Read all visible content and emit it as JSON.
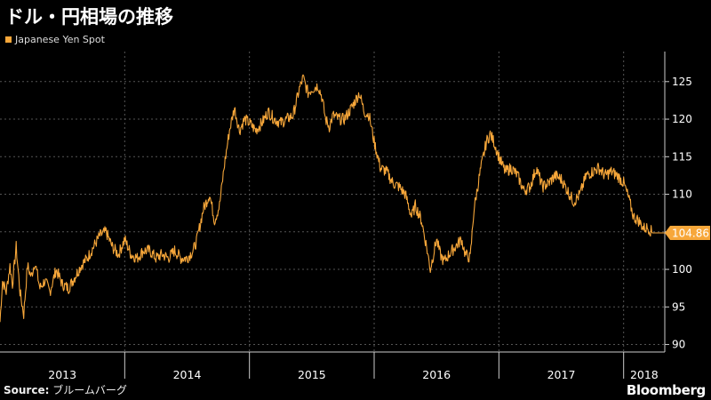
{
  "header": {
    "title": "ドル・円相場の推移"
  },
  "footer": {
    "source_label": "Source:",
    "source_text": "ブルームバーグ",
    "brand": "Bloomberg"
  },
  "colors": {
    "line": "#f7a73a",
    "grid": "#555555",
    "axis": "#cccccc",
    "background": "#000000",
    "last_label_bg": "#f7a73a"
  },
  "chart_data": {
    "type": "line",
    "title": "ドル・円相場の推移",
    "legend_position": "top-left",
    "grid": true,
    "y_axis_side": "right",
    "ylim": [
      89,
      129
    ],
    "yticks": [
      90,
      95,
      100,
      105,
      110,
      115,
      120,
      125
    ],
    "x_categories": [
      "2013",
      "2014",
      "2015",
      "2016",
      "2017",
      "2018"
    ],
    "xlim": [
      2013.0,
      2018.33
    ],
    "last_value_label": "104.86",
    "series": [
      {
        "name": "Japanese Yen Spot",
        "points": [
          [
            2013.0,
            93.0
          ],
          [
            2013.02,
            98.5
          ],
          [
            2013.05,
            97.0
          ],
          [
            2013.08,
            100.5
          ],
          [
            2013.1,
            98.0
          ],
          [
            2013.13,
            103.0
          ],
          [
            2013.16,
            97.0
          ],
          [
            2013.19,
            94.0
          ],
          [
            2013.22,
            100.5
          ],
          [
            2013.25,
            99.0
          ],
          [
            2013.28,
            101.0
          ],
          [
            2013.32,
            97.5
          ],
          [
            2013.36,
            98.5
          ],
          [
            2013.4,
            97.0
          ],
          [
            2013.45,
            100.0
          ],
          [
            2013.5,
            98.0
          ],
          [
            2013.55,
            97.5
          ],
          [
            2013.6,
            99.0
          ],
          [
            2013.65,
            100.5
          ],
          [
            2013.7,
            101.5
          ],
          [
            2013.75,
            103.0
          ],
          [
            2013.8,
            104.5
          ],
          [
            2013.85,
            105.0
          ],
          [
            2013.9,
            103.0
          ],
          [
            2013.95,
            102.0
          ],
          [
            2014.0,
            104.0
          ],
          [
            2014.05,
            102.0
          ],
          [
            2014.1,
            101.5
          ],
          [
            2014.15,
            102.5
          ],
          [
            2014.2,
            102.5
          ],
          [
            2014.25,
            101.5
          ],
          [
            2014.3,
            102.0
          ],
          [
            2014.35,
            101.5
          ],
          [
            2014.4,
            102.5
          ],
          [
            2014.45,
            101.5
          ],
          [
            2014.5,
            101.5
          ],
          [
            2014.55,
            102.5
          ],
          [
            2014.58,
            104.0
          ],
          [
            2014.63,
            108.0
          ],
          [
            2014.68,
            110.0
          ],
          [
            2014.72,
            106.5
          ],
          [
            2014.76,
            108.5
          ],
          [
            2014.8,
            114.0
          ],
          [
            2014.84,
            118.5
          ],
          [
            2014.88,
            121.5
          ],
          [
            2014.92,
            118.5
          ],
          [
            2014.96,
            120.0
          ],
          [
            2015.0,
            119.5
          ],
          [
            2015.05,
            118.5
          ],
          [
            2015.1,
            119.5
          ],
          [
            2015.15,
            121.0
          ],
          [
            2015.2,
            120.0
          ],
          [
            2015.25,
            119.5
          ],
          [
            2015.3,
            120.0
          ],
          [
            2015.35,
            120.5
          ],
          [
            2015.4,
            124.0
          ],
          [
            2015.43,
            125.5
          ],
          [
            2015.47,
            123.5
          ],
          [
            2015.5,
            124.0
          ],
          [
            2015.55,
            124.5
          ],
          [
            2015.58,
            123.0
          ],
          [
            2015.61,
            120.0
          ],
          [
            2015.64,
            119.0
          ],
          [
            2015.67,
            120.5
          ],
          [
            2015.72,
            120.0
          ],
          [
            2015.76,
            120.0
          ],
          [
            2015.8,
            121.0
          ],
          [
            2015.85,
            122.5
          ],
          [
            2015.88,
            123.5
          ],
          [
            2015.92,
            121.0
          ],
          [
            2015.96,
            120.5
          ],
          [
            2016.0,
            117.0
          ],
          [
            2016.05,
            113.5
          ],
          [
            2016.1,
            113.0
          ],
          [
            2016.15,
            111.5
          ],
          [
            2016.2,
            111.0
          ],
          [
            2016.25,
            110.0
          ],
          [
            2016.3,
            107.0
          ],
          [
            2016.33,
            108.5
          ],
          [
            2016.38,
            106.5
          ],
          [
            2016.42,
            103.0
          ],
          [
            2016.45,
            100.0
          ],
          [
            2016.5,
            104.0
          ],
          [
            2016.53,
            102.0
          ],
          [
            2016.56,
            101.0
          ],
          [
            2016.6,
            102.0
          ],
          [
            2016.65,
            103.0
          ],
          [
            2016.7,
            104.0
          ],
          [
            2016.73,
            102.0
          ],
          [
            2016.77,
            101.5
          ],
          [
            2016.8,
            108.0
          ],
          [
            2016.85,
            113.0
          ],
          [
            2016.9,
            117.0
          ],
          [
            2016.93,
            118.0
          ],
          [
            2016.96,
            117.0
          ],
          [
            2017.0,
            115.0
          ],
          [
            2017.05,
            113.0
          ],
          [
            2017.1,
            113.5
          ],
          [
            2017.15,
            112.5
          ],
          [
            2017.2,
            110.5
          ],
          [
            2017.25,
            111.0
          ],
          [
            2017.3,
            113.5
          ],
          [
            2017.35,
            111.0
          ],
          [
            2017.4,
            111.5
          ],
          [
            2017.45,
            112.5
          ],
          [
            2017.5,
            112.0
          ],
          [
            2017.55,
            110.5
          ],
          [
            2017.6,
            109.0
          ],
          [
            2017.65,
            110.0
          ],
          [
            2017.7,
            112.5
          ],
          [
            2017.75,
            113.0
          ],
          [
            2017.8,
            113.5
          ],
          [
            2017.85,
            112.5
          ],
          [
            2017.9,
            113.0
          ],
          [
            2017.95,
            112.5
          ],
          [
            2018.0,
            111.5
          ],
          [
            2018.04,
            109.5
          ],
          [
            2018.08,
            107.0
          ],
          [
            2018.12,
            106.5
          ],
          [
            2018.16,
            105.5
          ],
          [
            2018.2,
            105.5
          ],
          [
            2018.23,
            104.86
          ],
          [
            2018.33,
            104.86
          ]
        ]
      }
    ]
  }
}
